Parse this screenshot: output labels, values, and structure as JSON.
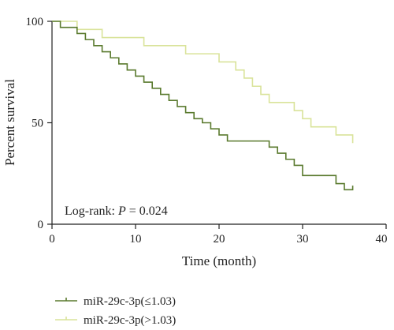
{
  "chart_data": {
    "type": "line",
    "step": true,
    "xlabel": "Time (month)",
    "ylabel": "Percent survival",
    "xlim": [
      0,
      40
    ],
    "ylim": [
      0,
      100
    ],
    "xticks": [
      "0",
      "10",
      "20",
      "30",
      "40"
    ],
    "yticks": [
      "0",
      "50",
      "100"
    ],
    "grid": false,
    "annotation": {
      "prefix": "Log-rank: ",
      "p_symbol": "P",
      "value": " = 0.024"
    },
    "legend_position": "bottom-left",
    "series": [
      {
        "name": "miR-29c-3p(≤1.03)",
        "color": "#5a7a2e",
        "x": [
          0,
          1,
          3,
          4,
          5,
          6,
          7,
          8,
          9,
          10,
          11,
          12,
          13,
          14,
          15,
          16,
          17,
          18,
          19,
          20,
          21,
          26,
          27,
          28,
          29,
          30,
          34,
          35,
          36
        ],
        "y": [
          100,
          97,
          94,
          91,
          88,
          85,
          82,
          79,
          76,
          73,
          70,
          67,
          64,
          61,
          58,
          55,
          52,
          50,
          47,
          44,
          41,
          38,
          35,
          32,
          29,
          24,
          20,
          17,
          19
        ]
      },
      {
        "name": "miR-29c-3p(>1.03)",
        "color": "#d9e39a",
        "x": [
          0,
          3,
          6,
          11,
          16,
          20,
          22,
          23,
          24,
          25,
          26,
          29,
          30,
          31,
          34,
          36
        ],
        "y": [
          100,
          96,
          92,
          88,
          84,
          80,
          76,
          72,
          68,
          64,
          60,
          56,
          52,
          48,
          44,
          40
        ]
      }
    ]
  }
}
